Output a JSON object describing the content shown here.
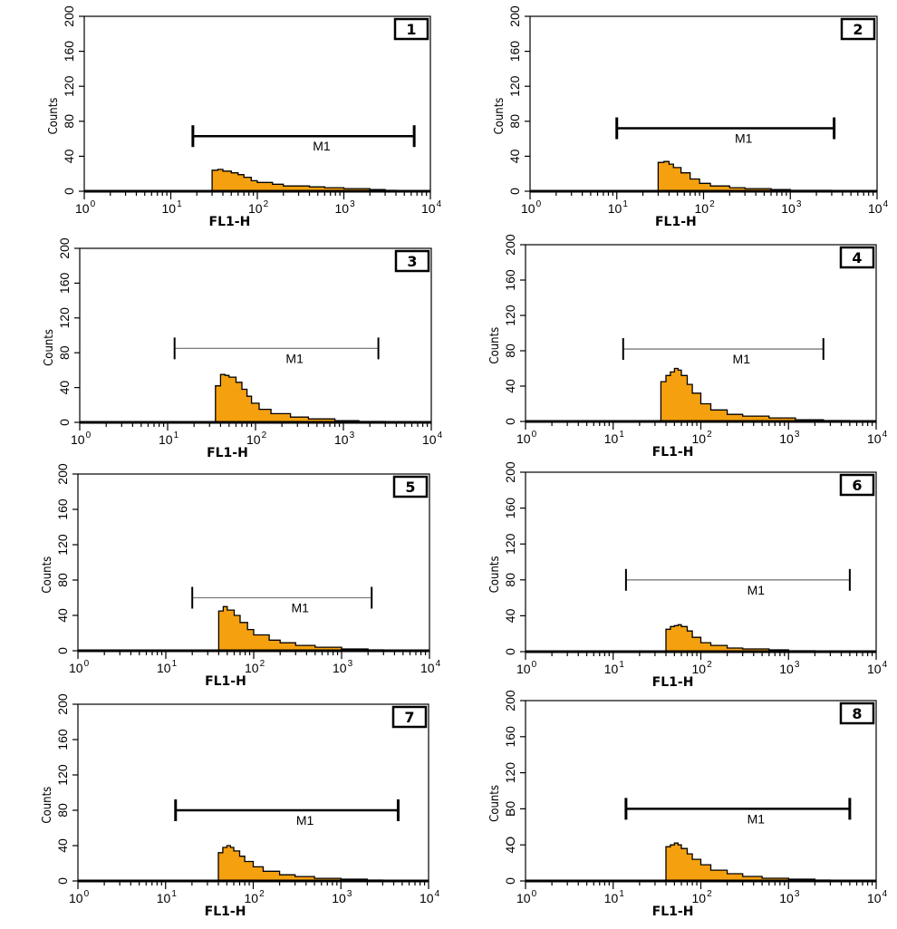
{
  "chart_data": [
    {
      "type": "area",
      "panel_label": "1",
      "xlabel": "FL1-H",
      "ylabel": "Counts",
      "xscale": "log",
      "xlim": [
        1,
        10000
      ],
      "ylim": [
        0,
        200
      ],
      "x_tick_labels": [
        "10^0",
        "10^1",
        "10^2",
        "10^3",
        "10^4"
      ],
      "y_tick_labels": [
        "0",
        "40",
        "80",
        "120",
        "160",
        "200"
      ],
      "marker": {
        "label": "M1",
        "range": [
          18,
          6500
        ],
        "y": 63,
        "style": "bold"
      },
      "x": [
        30,
        35,
        40,
        50,
        60,
        70,
        85,
        100,
        150,
        200,
        400,
        600,
        1000,
        2000,
        3000,
        4000
      ],
      "values": [
        24,
        25,
        23,
        21,
        19,
        16,
        12,
        10,
        8,
        6,
        5,
        4,
        3,
        2,
        1,
        0
      ]
    },
    {
      "type": "area",
      "panel_label": "2",
      "xlabel": "FL1-H",
      "ylabel": "Counts",
      "xscale": "log",
      "xlim": [
        1,
        10000
      ],
      "ylim": [
        0,
        200
      ],
      "x_tick_labels": [
        "10^0",
        "10^1",
        "10^2",
        "10^3",
        "10^4"
      ],
      "y_tick_labels": [
        "0",
        "40",
        "80",
        "120",
        "160",
        "200"
      ],
      "marker": {
        "label": "M1",
        "range": [
          10,
          3200
        ],
        "y": 72,
        "style": "bold"
      },
      "x": [
        30,
        35,
        40,
        45,
        55,
        70,
        90,
        120,
        200,
        300,
        600,
        1000,
        2000,
        3000
      ],
      "values": [
        33,
        34,
        31,
        27,
        21,
        14,
        9,
        6,
        4,
        3,
        2,
        1,
        1,
        0
      ]
    },
    {
      "type": "area",
      "panel_label": "3",
      "xlabel": "FL1-H",
      "ylabel": "Counts",
      "xscale": "log",
      "xlim": [
        1,
        10000
      ],
      "ylim": [
        0,
        200
      ],
      "x_tick_labels": [
        "10^0",
        "10^1",
        "10^2",
        "10^3",
        "10^4"
      ],
      "y_tick_labels": [
        "0",
        "40",
        "80",
        "120",
        "160",
        "200"
      ],
      "marker": {
        "label": "M1",
        "range": [
          12,
          2500
        ],
        "y": 85,
        "style": "thin"
      },
      "x": [
        35,
        40,
        45,
        50,
        60,
        70,
        80,
        90,
        110,
        150,
        250,
        400,
        800,
        1500,
        3000
      ],
      "values": [
        42,
        55,
        54,
        52,
        46,
        38,
        30,
        22,
        15,
        10,
        6,
        4,
        2,
        1,
        0
      ]
    },
    {
      "type": "area",
      "panel_label": "4",
      "xlabel": "FL1-H",
      "ylabel": "Counts",
      "xscale": "log",
      "xlim": [
        1,
        10000
      ],
      "ylim": [
        0,
        200
      ],
      "x_tick_labels": [
        "10^0",
        "10^1",
        "10^2",
        "10^3",
        "10^4"
      ],
      "y_tick_labels": [
        "0",
        "40",
        "80",
        "120",
        "160",
        "200"
      ],
      "marker": {
        "label": "M1",
        "range": [
          13,
          2500
        ],
        "y": 82,
        "style": "thin"
      },
      "x": [
        35,
        40,
        45,
        50,
        55,
        60,
        70,
        80,
        100,
        130,
        200,
        300,
        600,
        1200,
        2500,
        5000
      ],
      "values": [
        45,
        52,
        56,
        60,
        58,
        52,
        42,
        32,
        20,
        13,
        8,
        6,
        4,
        2,
        1,
        0
      ]
    },
    {
      "type": "area",
      "panel_label": "5",
      "xlabel": "FL1-H",
      "ylabel": "Counts",
      "xscale": "log",
      "xlim": [
        1,
        10000
      ],
      "ylim": [
        0,
        200
      ],
      "x_tick_labels": [
        "10^0",
        "10^1",
        "10^2",
        "10^3",
        "10^4"
      ],
      "y_tick_labels": [
        "0",
        "40",
        "80",
        "120",
        "160",
        "200"
      ],
      "marker": {
        "label": "M1",
        "range": [
          20,
          2200
        ],
        "y": 60,
        "style": "thin"
      },
      "x": [
        40,
        45,
        50,
        60,
        70,
        85,
        100,
        150,
        200,
        300,
        500,
        1000,
        2000,
        3000
      ],
      "values": [
        45,
        50,
        46,
        40,
        32,
        24,
        18,
        12,
        9,
        6,
        4,
        2,
        1,
        0
      ]
    },
    {
      "type": "area",
      "panel_label": "6",
      "xlabel": "FL1-H",
      "ylabel": "Counts",
      "xscale": "log",
      "xlim": [
        1,
        10000
      ],
      "ylim": [
        0,
        200
      ],
      "x_tick_labels": [
        "10^0",
        "10^1",
        "10^2",
        "10^3",
        "10^4"
      ],
      "y_tick_labels": [
        "0",
        "40",
        "80",
        "120",
        "160",
        "200"
      ],
      "marker": {
        "label": "M1",
        "range": [
          14,
          5000
        ],
        "y": 80,
        "style": "thin"
      },
      "x": [
        40,
        45,
        50,
        55,
        60,
        70,
        80,
        100,
        130,
        200,
        300,
        600,
        1000,
        2000
      ],
      "values": [
        25,
        28,
        29,
        30,
        28,
        23,
        16,
        10,
        7,
        4,
        3,
        2,
        1,
        0
      ]
    },
    {
      "type": "area",
      "panel_label": "7",
      "xlabel": "FL1-H",
      "ylabel": "Counts",
      "xscale": "log",
      "xlim": [
        1,
        10000
      ],
      "ylim": [
        0,
        200
      ],
      "x_tick_labels": [
        "10^0",
        "10^1",
        "10^2",
        "10^3",
        "10^4"
      ],
      "y_tick_labels": [
        "0",
        "40",
        "80",
        "120",
        "160",
        "200"
      ],
      "marker": {
        "label": "M1",
        "range": [
          13,
          4500
        ],
        "y": 80,
        "style": "bold"
      },
      "x": [
        40,
        45,
        50,
        55,
        60,
        70,
        80,
        100,
        130,
        200,
        300,
        500,
        1000,
        2000,
        3000
      ],
      "values": [
        32,
        38,
        40,
        38,
        34,
        28,
        22,
        16,
        11,
        7,
        5,
        3,
        2,
        1,
        0
      ]
    },
    {
      "type": "area",
      "panel_label": "8",
      "xlabel": "FL1-H",
      "ylabel": "Counts",
      "xscale": "log",
      "xlim": [
        1,
        10000
      ],
      "ylim": [
        0,
        200
      ],
      "x_tick_labels": [
        "10^0",
        "10^1",
        "10^2",
        "10^3",
        "10^4"
      ],
      "y_tick_labels": [
        "0",
        "40",
        "80",
        "120",
        "160",
        "200"
      ],
      "y_tick_label_overrides": {
        "80": "B0",
        "40": "4O"
      },
      "marker": {
        "label": "M1",
        "range": [
          14,
          5000
        ],
        "y": 80,
        "style": "bold"
      },
      "x": [
        40,
        45,
        50,
        55,
        60,
        70,
        80,
        100,
        130,
        200,
        300,
        500,
        1000,
        2000,
        3000
      ],
      "values": [
        38,
        40,
        42,
        40,
        36,
        30,
        24,
        18,
        12,
        8,
        5,
        3,
        2,
        1,
        0
      ]
    }
  ],
  "colors": {
    "fill": "#f5a00f",
    "outline": "#000000",
    "axis": "#000000",
    "marker_thin": "#7a7a7a",
    "marker_bold": "#000000"
  }
}
